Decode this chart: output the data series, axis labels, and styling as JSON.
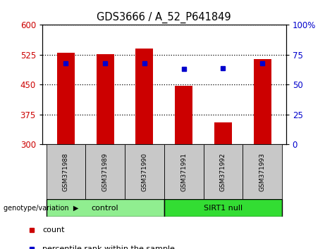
{
  "title": "GDS3666 / A_52_P641849",
  "samples": [
    "GSM371988",
    "GSM371989",
    "GSM371990",
    "GSM371991",
    "GSM371992",
    "GSM371993"
  ],
  "counts": [
    530,
    527,
    540,
    447,
    355,
    515
  ],
  "percentile_ranks": [
    68,
    68,
    68,
    63,
    64,
    68
  ],
  "y_min": 300,
  "y_max": 600,
  "y_ticks": [
    300,
    375,
    450,
    525,
    600
  ],
  "right_y_ticks": [
    0,
    25,
    50,
    75,
    100
  ],
  "right_y_labels": [
    "0",
    "25",
    "50",
    "75",
    "100%"
  ],
  "bar_color": "#cc0000",
  "dot_color": "#0000cc",
  "bar_width": 0.45,
  "groups": [
    {
      "label": "control",
      "indices": [
        0,
        1,
        2
      ],
      "color": "#90EE90"
    },
    {
      "label": "SIRT1 null",
      "indices": [
        3,
        4,
        5
      ],
      "color": "#33dd33"
    }
  ],
  "group_label": "genotype/variation",
  "legend_count_color": "#cc0000",
  "legend_pct_color": "#0000cc",
  "tick_color_left": "#cc0000",
  "tick_color_right": "#0000cc",
  "sample_area_color": "#c8c8c8",
  "dotted_line_ticks": [
    375,
    450,
    525,
    600
  ]
}
